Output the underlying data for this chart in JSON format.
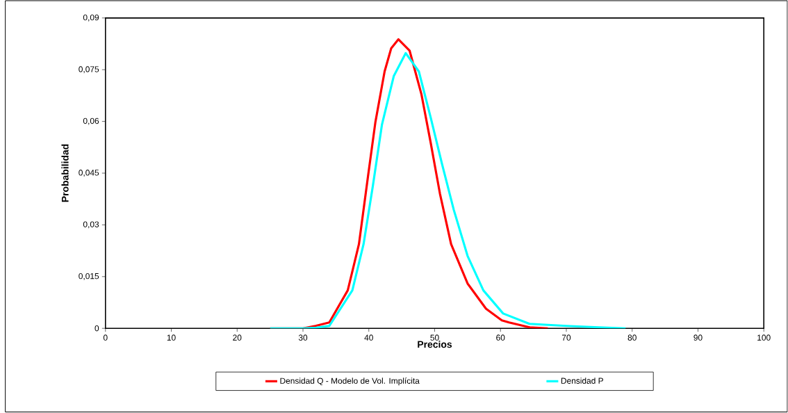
{
  "chart_data": {
    "type": "line",
    "xlabel": "Precios",
    "ylabel": "Probabilidad",
    "xlim": [
      0,
      100
    ],
    "ylim": [
      0,
      0.09
    ],
    "xticks": [
      0,
      10,
      20,
      30,
      40,
      50,
      60,
      70,
      80,
      90,
      100
    ],
    "yticks": [
      0,
      {
        "value": 0.015,
        "label": "0,015"
      },
      {
        "value": 0.03,
        "label": "0,03"
      },
      {
        "value": 0.045,
        "label": "0,045"
      },
      {
        "value": 0.06,
        "label": "0,06"
      },
      {
        "value": 0.075,
        "label": "0,075"
      },
      {
        "value": 0.09,
        "label": "0,09"
      }
    ],
    "grid": false,
    "legend": "bottom",
    "marker": "none",
    "line_style": "solid",
    "series": [
      {
        "name": "Densidad Q - Modelo de Vol. Implícita",
        "color": "#ff0000",
        "x": [
          25,
          30,
          31.9,
          34.0,
          36.8,
          38.5,
          39.9,
          41.0,
          42.4,
          43.4,
          44.5,
          46.2,
          48.0,
          49.4,
          50.8,
          52.5,
          55.0,
          57.8,
          60.2,
          61.3,
          64.4,
          67.2
        ],
        "values": [
          0,
          0,
          0.0007,
          0.0017,
          0.011,
          0.0244,
          0.0444,
          0.0598,
          0.0745,
          0.0812,
          0.0838,
          0.0805,
          0.0678,
          0.0538,
          0.0391,
          0.0244,
          0.013,
          0.0057,
          0.0023,
          0.0017,
          0.0003,
          0
        ]
      },
      {
        "name": "Densidad P",
        "color": "#00ffff",
        "x": [
          25,
          30,
          32,
          34.0,
          37.5,
          39.2,
          40.6,
          42.0,
          43.8,
          45.6,
          47.6,
          49.4,
          51.1,
          52.9,
          55.0,
          57.4,
          60.4,
          64.4,
          70.0,
          74.9,
          79
        ],
        "values": [
          0,
          0,
          0.0002,
          0.0007,
          0.011,
          0.0244,
          0.0411,
          0.0591,
          0.0732,
          0.0798,
          0.0745,
          0.0611,
          0.0478,
          0.0344,
          0.021,
          0.011,
          0.0043,
          0.0013,
          0.0007,
          0.0003,
          0
        ]
      }
    ]
  }
}
